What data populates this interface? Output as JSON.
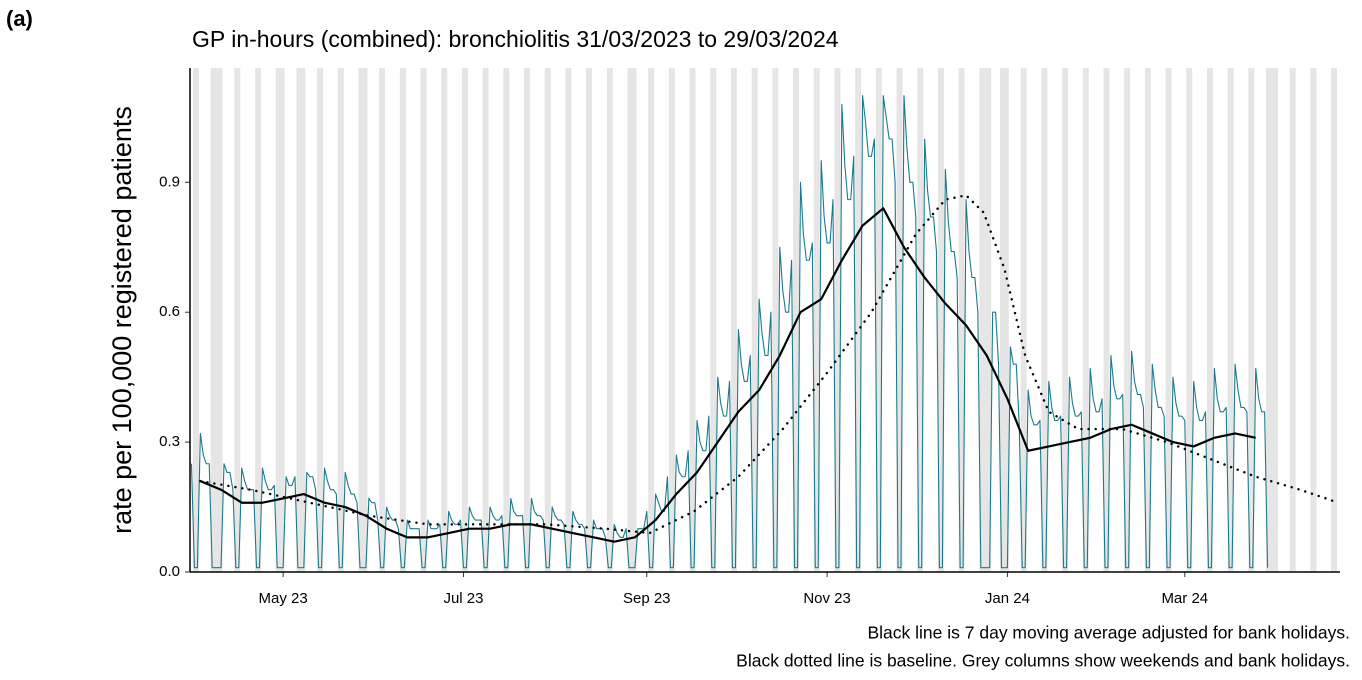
{
  "panel_label": "(a)",
  "chart_data": {
    "type": "line",
    "title": "GP in-hours (combined): bronchiolitis 31/03/2023 to 29/03/2024",
    "y_label": "rate per 100,000 registered patients",
    "notes": [
      "Black line is 7 day moving average adjusted for bank holidays.",
      "Black dotted line is baseline. Grey columns show weekends and bank holidays."
    ],
    "xlim": [
      -0.5,
      388.5
    ],
    "ylim": [
      0,
      1.164
    ],
    "xticks": [
      {
        "value": 31,
        "label": "May 23"
      },
      {
        "value": 92,
        "label": "Jul 23"
      },
      {
        "value": 154,
        "label": "Sep 23"
      },
      {
        "value": 215,
        "label": "Nov 23"
      },
      {
        "value": 276,
        "label": "Jan 24"
      },
      {
        "value": 336,
        "label": "Mar 24"
      }
    ],
    "yticks": [
      {
        "value": 0,
        "label": "0.0"
      },
      0.3,
      0.6,
      0.9
    ],
    "shade_color": "#e5e5e5",
    "shaded_days": [
      1,
      2,
      7,
      8,
      9,
      10,
      15,
      16,
      22,
      23,
      29,
      30,
      31,
      36,
      37,
      38,
      43,
      44,
      50,
      51,
      57,
      58,
      59,
      64,
      65,
      71,
      72,
      78,
      79,
      85,
      86,
      92,
      93,
      99,
      100,
      106,
      107,
      113,
      114,
      120,
      121,
      127,
      128,
      134,
      135,
      141,
      142,
      148,
      149,
      150,
      155,
      156,
      162,
      163,
      169,
      170,
      176,
      177,
      183,
      184,
      190,
      191,
      197,
      198,
      204,
      205,
      211,
      212,
      218,
      219,
      225,
      226,
      232,
      233,
      239,
      240,
      246,
      247,
      253,
      254,
      260,
      261,
      267,
      268,
      269,
      270,
      274,
      275,
      276,
      281,
      282,
      288,
      289,
      295,
      296,
      302,
      303,
      309,
      310,
      316,
      317,
      323,
      324,
      330,
      331,
      337,
      338,
      344,
      345,
      351,
      352,
      358,
      359,
      364,
      365,
      366,
      367,
      372,
      373,
      379,
      380,
      386,
      387
    ],
    "series": [
      {
        "color": "#1b7a8c",
        "width": 1.1,
        "dashed": false,
        "x": [
          0,
          1,
          2,
          3,
          4,
          5,
          6,
          7,
          8,
          9,
          10,
          11,
          12,
          13,
          14,
          15,
          16,
          17,
          18,
          19,
          20,
          21,
          22,
          23,
          24,
          25,
          26,
          27,
          28,
          29,
          30,
          31,
          32,
          33,
          34,
          35,
          36,
          37,
          38,
          39,
          40,
          41,
          42,
          43,
          44,
          45,
          46,
          47,
          48,
          49,
          50,
          51,
          52,
          53,
          54,
          55,
          56,
          57,
          58,
          59,
          60,
          61,
          62,
          63,
          64,
          65,
          66,
          67,
          68,
          69,
          70,
          71,
          72,
          73,
          74,
          75,
          76,
          77,
          78,
          79,
          80,
          81,
          82,
          83,
          84,
          85,
          86,
          87,
          88,
          89,
          90,
          91,
          92,
          93,
          94,
          95,
          96,
          97,
          98,
          99,
          100,
          101,
          102,
          103,
          104,
          105,
          106,
          107,
          108,
          109,
          110,
          111,
          112,
          113,
          114,
          115,
          116,
          117,
          118,
          119,
          120,
          121,
          122,
          123,
          124,
          125,
          126,
          127,
          128,
          129,
          130,
          131,
          132,
          133,
          134,
          135,
          136,
          137,
          138,
          139,
          140,
          141,
          142,
          143,
          144,
          145,
          146,
          147,
          148,
          149,
          150,
          151,
          152,
          153,
          154,
          155,
          156,
          157,
          158,
          159,
          160,
          161,
          162,
          163,
          164,
          165,
          166,
          167,
          168,
          169,
          170,
          171,
          172,
          173,
          174,
          175,
          176,
          177,
          178,
          179,
          180,
          181,
          182,
          183,
          184,
          185,
          186,
          187,
          188,
          189,
          190,
          191,
          192,
          193,
          194,
          195,
          196,
          197,
          198,
          199,
          200,
          201,
          202,
          203,
          204,
          205,
          206,
          207,
          208,
          209,
          210,
          211,
          212,
          213,
          214,
          215,
          216,
          217,
          218,
          219,
          220,
          221,
          222,
          223,
          224,
          225,
          226,
          227,
          228,
          229,
          230,
          231,
          232,
          233,
          234,
          235,
          236,
          237,
          238,
          239,
          240,
          241,
          242,
          243,
          244,
          245,
          246,
          247,
          248,
          249,
          250,
          251,
          252,
          253,
          254,
          255,
          256,
          257,
          258,
          259,
          260,
          261,
          262,
          263,
          264,
          265,
          266,
          267,
          268,
          269,
          270,
          271,
          272,
          273,
          274,
          275,
          276,
          277,
          278,
          279,
          280,
          281,
          282,
          283,
          284,
          285,
          286,
          287,
          288,
          289,
          290,
          291,
          292,
          293,
          294,
          295,
          296,
          297,
          298,
          299,
          300,
          301,
          302,
          303,
          304,
          305,
          306,
          307,
          308,
          309,
          310,
          311,
          312,
          313,
          314,
          315,
          316,
          317,
          318,
          319,
          320,
          321,
          322,
          323,
          324,
          325,
          326,
          327,
          328,
          329,
          330,
          331,
          332,
          333,
          334,
          335,
          336,
          337,
          338,
          339,
          340,
          341,
          342,
          343,
          344,
          345,
          346,
          347,
          348,
          349,
          350,
          351,
          352,
          353,
          354,
          355,
          356,
          357,
          358,
          359,
          360,
          361,
          362,
          363,
          364
        ],
        "values": [
          0.25,
          0.01,
          0.01,
          0.32,
          0.27,
          0.25,
          0.25,
          0.01,
          0.01,
          0.01,
          0.01,
          0.25,
          0.23,
          0.23,
          0.19,
          0.01,
          0.01,
          0.24,
          0.21,
          0.19,
          0.19,
          0.19,
          0.01,
          0.01,
          0.24,
          0.21,
          0.19,
          0.19,
          0.2,
          0.01,
          0.01,
          0.01,
          0.22,
          0.2,
          0.2,
          0.22,
          0.01,
          0.01,
          0.01,
          0.23,
          0.22,
          0.22,
          0.19,
          0.01,
          0.01,
          0.24,
          0.21,
          0.19,
          0.19,
          0.18,
          0.01,
          0.01,
          0.23,
          0.2,
          0.18,
          0.18,
          0.16,
          0.01,
          0.01,
          0.01,
          0.17,
          0.16,
          0.16,
          0.12,
          0.01,
          0.01,
          0.15,
          0.13,
          0.12,
          0.12,
          0.1,
          0.01,
          0.01,
          0.12,
          0.1,
          0.1,
          0.1,
          0.1,
          0.01,
          0.01,
          0.12,
          0.1,
          0.1,
          0.1,
          0.11,
          0.01,
          0.01,
          0.14,
          0.12,
          0.11,
          0.11,
          0.12,
          0.01,
          0.01,
          0.15,
          0.13,
          0.12,
          0.12,
          0.12,
          0.01,
          0.01,
          0.15,
          0.13,
          0.12,
          0.12,
          0.13,
          0.01,
          0.01,
          0.17,
          0.14,
          0.13,
          0.13,
          0.13,
          0.01,
          0.01,
          0.17,
          0.14,
          0.13,
          0.13,
          0.12,
          0.01,
          0.01,
          0.15,
          0.13,
          0.12,
          0.12,
          0.11,
          0.01,
          0.01,
          0.14,
          0.12,
          0.11,
          0.11,
          0.1,
          0.01,
          0.01,
          0.12,
          0.1,
          0.1,
          0.1,
          0.08,
          0.01,
          0.01,
          0.11,
          0.09,
          0.08,
          0.08,
          0.1,
          0.01,
          0.01,
          0.01,
          0.1,
          0.1,
          0.1,
          0.14,
          0.01,
          0.01,
          0.18,
          0.16,
          0.14,
          0.14,
          0.22,
          0.01,
          0.01,
          0.27,
          0.23,
          0.22,
          0.22,
          0.28,
          0.01,
          0.01,
          0.35,
          0.3,
          0.28,
          0.28,
          0.36,
          0.01,
          0.01,
          0.45,
          0.39,
          0.36,
          0.36,
          0.44,
          0.01,
          0.01,
          0.56,
          0.48,
          0.44,
          0.44,
          0.5,
          0.01,
          0.01,
          0.63,
          0.55,
          0.5,
          0.5,
          0.6,
          0.01,
          0.01,
          0.75,
          0.65,
          0.6,
          0.6,
          0.72,
          0.01,
          0.01,
          0.9,
          0.78,
          0.72,
          0.72,
          0.76,
          0.01,
          0.01,
          0.95,
          0.82,
          0.76,
          0.76,
          0.86,
          0.01,
          0.01,
          1.08,
          0.94,
          0.86,
          0.86,
          0.96,
          0.01,
          0.01,
          1.1,
          1.04,
          0.96,
          0.96,
          1.0,
          0.01,
          0.01,
          1.1,
          1.05,
          1.0,
          1.0,
          0.9,
          0.01,
          0.01,
          1.1,
          0.98,
          0.9,
          0.9,
          0.82,
          0.01,
          0.01,
          1.0,
          0.88,
          0.82,
          0.82,
          0.74,
          0.01,
          0.01,
          0.93,
          0.81,
          0.74,
          0.74,
          0.68,
          0.01,
          0.01,
          0.86,
          0.74,
          0.68,
          0.68,
          0.6,
          0.01,
          0.01,
          0.01,
          0.01,
          0.6,
          0.6,
          0.48,
          0.01,
          0.01,
          0.01,
          0.52,
          0.48,
          0.48,
          0.34,
          0.01,
          0.01,
          0.42,
          0.36,
          0.34,
          0.34,
          0.35,
          0.01,
          0.01,
          0.44,
          0.38,
          0.35,
          0.35,
          0.36,
          0.01,
          0.01,
          0.45,
          0.39,
          0.36,
          0.36,
          0.37,
          0.01,
          0.01,
          0.47,
          0.4,
          0.37,
          0.37,
          0.4,
          0.01,
          0.01,
          0.5,
          0.43,
          0.4,
          0.4,
          0.41,
          0.01,
          0.01,
          0.51,
          0.44,
          0.41,
          0.41,
          0.38,
          0.01,
          0.01,
          0.48,
          0.42,
          0.38,
          0.38,
          0.36,
          0.01,
          0.01,
          0.45,
          0.39,
          0.36,
          0.36,
          0.35,
          0.01,
          0.01,
          0.44,
          0.38,
          0.35,
          0.35,
          0.37,
          0.01,
          0.01,
          0.47,
          0.4,
          0.37,
          0.37,
          0.38,
          0.01,
          0.01,
          0.48,
          0.42,
          0.38,
          0.38,
          0.37,
          0.01,
          0.01,
          0.47,
          0.4,
          0.37,
          0.37,
          0.01
        ]
      },
      {
        "color": "#000000",
        "width": 1,
        "dashed": true,
        "x": [
          3,
          20,
          40,
          60,
          80,
          100,
          120,
          140,
          155,
          170,
          185,
          200,
          215,
          230,
          245,
          255,
          262,
          268,
          275,
          282,
          290,
          300,
          315,
          330,
          345,
          360,
          375,
          388
        ],
        "values": [
          0.21,
          0.19,
          0.16,
          0.13,
          0.11,
          0.11,
          0.11,
          0.1,
          0.09,
          0.14,
          0.22,
          0.33,
          0.46,
          0.6,
          0.78,
          0.86,
          0.87,
          0.83,
          0.7,
          0.5,
          0.37,
          0.33,
          0.33,
          0.3,
          0.26,
          0.22,
          0.19,
          0.16
        ]
      },
      {
        "color": "#000000",
        "width": 2.2,
        "dashed": false,
        "x": [
          3,
          10,
          17,
          24,
          31,
          38,
          45,
          52,
          59,
          66,
          73,
          80,
          87,
          94,
          101,
          108,
          115,
          122,
          129,
          136,
          143,
          150,
          157,
          164,
          171,
          178,
          185,
          192,
          199,
          206,
          213,
          220,
          227,
          234,
          241,
          248,
          255,
          262,
          269,
          276,
          283,
          290,
          297,
          304,
          311,
          318,
          325,
          332,
          339,
          346,
          353,
          360
        ],
        "values": [
          0.21,
          0.19,
          0.16,
          0.16,
          0.17,
          0.18,
          0.16,
          0.15,
          0.13,
          0.1,
          0.08,
          0.08,
          0.09,
          0.1,
          0.1,
          0.11,
          0.11,
          0.1,
          0.09,
          0.08,
          0.07,
          0.08,
          0.12,
          0.18,
          0.23,
          0.3,
          0.37,
          0.42,
          0.5,
          0.6,
          0.63,
          0.72,
          0.8,
          0.84,
          0.75,
          0.68,
          0.62,
          0.57,
          0.5,
          0.4,
          0.28,
          0.29,
          0.3,
          0.31,
          0.33,
          0.34,
          0.32,
          0.3,
          0.29,
          0.31,
          0.32,
          0.31
        ]
      }
    ]
  }
}
